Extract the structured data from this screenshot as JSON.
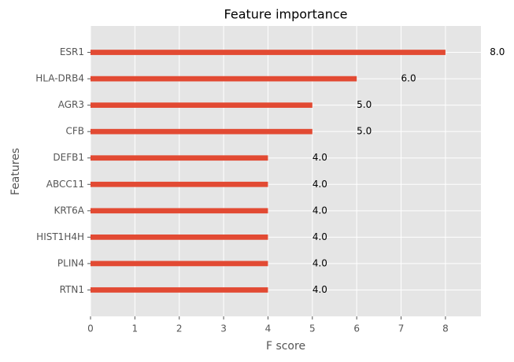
{
  "chart_data": {
    "type": "barh",
    "title": "Feature importance",
    "xlabel": "F score",
    "ylabel": "Features",
    "categories": [
      "ESR1",
      "HLA-DRB4",
      "AGR3",
      "CFB",
      "DEFB1",
      "ABCC11",
      "KRT6A",
      "HIST1H4H",
      "PLIN4",
      "RTN1"
    ],
    "values": [
      8,
      6,
      5,
      5,
      4,
      4,
      4,
      4,
      4,
      4
    ],
    "value_labels": [
      "8.0",
      "6.0",
      "5.0",
      "5.0",
      "4.0",
      "4.0",
      "4.0",
      "4.0",
      "4.0",
      "4.0"
    ],
    "color": "#e24a33",
    "xlim": [
      0,
      8.8
    ],
    "xticks": [
      0,
      1,
      2,
      3,
      4,
      5,
      6,
      7,
      8
    ],
    "grid": true
  }
}
